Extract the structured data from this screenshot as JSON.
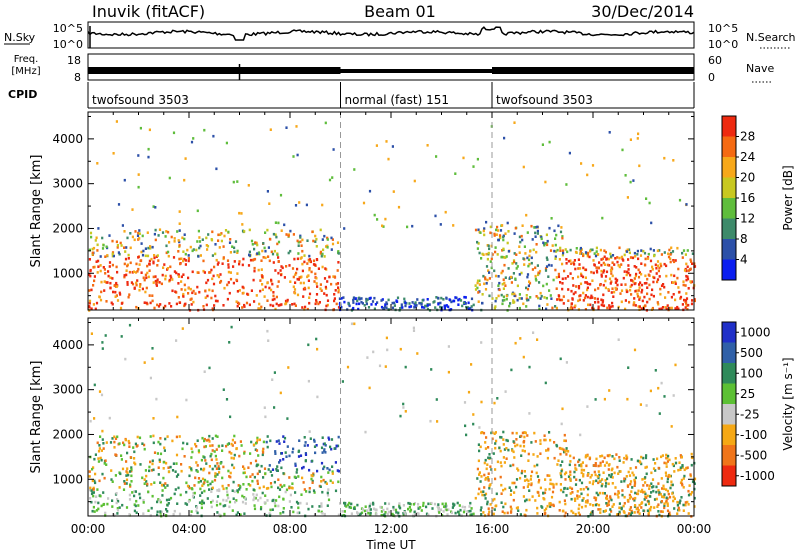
{
  "header": {
    "station": "Inuvik (fitACF)",
    "beam": "Beam 01",
    "date": "30/Dec/2014"
  },
  "summary_panels": {
    "nsky_label": "N.Sky",
    "nsky_ticks": [
      "10^5",
      "10^0"
    ],
    "nsearch_label": "N.Search",
    "nsearch_ticks": [
      "10^5",
      "10^0"
    ],
    "freq_label_line1": "Freq.",
    "freq_label_line2": "[MHz]",
    "freq_ticks": [
      "18",
      "8"
    ],
    "nave_label": "Nave",
    "nave_ticks": [
      "60",
      "0"
    ],
    "cpid_label": "CPID",
    "cpid_segments": [
      {
        "label": "twofsound 3503",
        "start_hour": 0,
        "end_hour": 10
      },
      {
        "label": "normal (fast) 151",
        "start_hour": 10,
        "end_hour": 16
      },
      {
        "label": "twofsound 3503",
        "start_hour": 16,
        "end_hour": 24
      }
    ]
  },
  "chart_data": [
    {
      "type": "heatmap",
      "ylabel": "Slant Range [km]",
      "xlabel": "Time UT",
      "xlim_hours": [
        0,
        24
      ],
      "ylim": [
        180,
        4600
      ],
      "ytick_values": [
        1000,
        2000,
        3000,
        4000
      ],
      "ytick_labels": [
        "1000",
        "2000",
        "3000",
        "4000"
      ],
      "colorbar": {
        "label": "Power [dB]",
        "range": [
          0,
          32
        ],
        "ticks": [
          "4",
          "8",
          "12",
          "16",
          "20",
          "24",
          "28"
        ],
        "colors": [
          "#0b1ef0",
          "#2c50a8",
          "#3d8a6a",
          "#5fbd3c",
          "#c8c820",
          "#f7a81a",
          "#f56a12",
          "#ee2a10"
        ]
      },
      "vertical_markers_hours": [
        10,
        16
      ]
    },
    {
      "type": "heatmap",
      "ylabel": "Slant Range [km]",
      "xlabel": "Time UT",
      "xlim_hours": [
        0,
        24
      ],
      "ylim": [
        180,
        4600
      ],
      "ytick_values": [
        1000,
        2000,
        3000,
        4000
      ],
      "ytick_labels": [
        "1000",
        "2000",
        "3000",
        "4000"
      ],
      "colorbar": {
        "label": "Velocity [m s⁻¹]",
        "ticks": [
          "1000",
          "500",
          "100",
          "25",
          "-25",
          "-100",
          "-500",
          "-1000"
        ],
        "colors": [
          "#2030c8",
          "#3060a8",
          "#2f8a5a",
          "#5cc034",
          "#c8c8c8",
          "#f5a815",
          "#f0751a",
          "#ee2a10"
        ]
      },
      "vertical_markers_hours": [
        10,
        16
      ]
    }
  ],
  "time_axis": {
    "labels": [
      "00:00",
      "04:00",
      "08:00",
      "12:00",
      "16:00",
      "20:00",
      "00:00"
    ],
    "title": "Time UT"
  }
}
